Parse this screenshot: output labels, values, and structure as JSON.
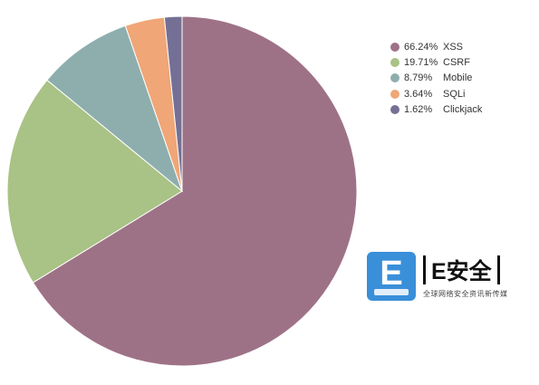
{
  "chart_data": {
    "type": "pie",
    "title": "",
    "slices": [
      {
        "label": "XSS",
        "value": 66.24,
        "value_label": "66.24%",
        "color": "#9e7286"
      },
      {
        "label": "CSRF",
        "value": 19.71,
        "value_label": "19.71%",
        "color": "#a9c285"
      },
      {
        "label": "Mobile",
        "value": 8.79,
        "value_label": "8.79%",
        "color": "#8eaeae"
      },
      {
        "label": "SQLi",
        "value": 3.64,
        "value_label": "3.64%",
        "color": "#f0a676"
      },
      {
        "label": "Clickjack",
        "value": 1.62,
        "value_label": "1.62%",
        "color": "#747095"
      }
    ],
    "legend_position": "top-right"
  },
  "watermark": {
    "badge_letter": "E",
    "brand_text": "E安全",
    "tagline": "全球网络安全资讯新传媒"
  }
}
